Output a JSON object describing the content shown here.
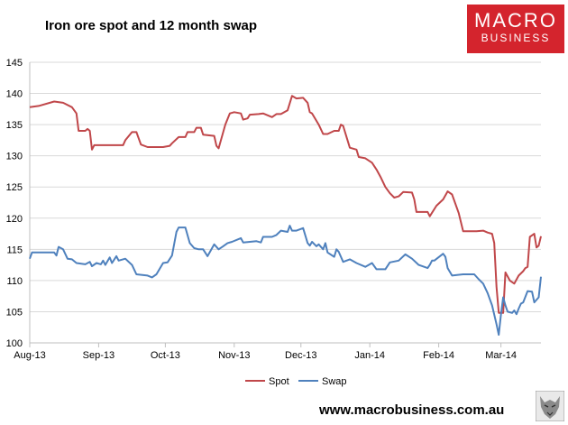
{
  "header": {
    "title": "Iron ore spot and 12 month swap",
    "logo_top": "MACRO",
    "logo_bottom": "BUSINESS"
  },
  "footer": {
    "website": "www.macrobusiness.com.au"
  },
  "colors": {
    "spot": "#c0474a",
    "swap": "#4f81bd",
    "logo": "#d4242d"
  },
  "icons": [
    "wolf-logo-icon"
  ],
  "chart_data": {
    "type": "line",
    "title": "Iron ore spot and 12 month swap",
    "xlabel": "",
    "ylabel": "",
    "x_tick_labels": [
      "Aug-13",
      "Sep-13",
      "Oct-13",
      "Nov-13",
      "Dec-13",
      "Jan-14",
      "Feb-14",
      "Mar-14"
    ],
    "x_range": [
      "2013-08-01",
      "2014-03-19"
    ],
    "ylim": [
      100,
      145
    ],
    "y_ticks": [
      100,
      105,
      110,
      115,
      120,
      125,
      130,
      135,
      140,
      145
    ],
    "grid": "horizontal",
    "legend": "bottom-center",
    "series": [
      {
        "name": "Spot",
        "points": [
          [
            "2013-08-01",
            137.8
          ],
          [
            "2013-08-05",
            138.0
          ],
          [
            "2013-08-12",
            138.7
          ],
          [
            "2013-08-16",
            138.5
          ],
          [
            "2013-08-20",
            137.8
          ],
          [
            "2013-08-22",
            136.8
          ],
          [
            "2013-08-23",
            134.0
          ],
          [
            "2013-08-26",
            134.0
          ],
          [
            "2013-08-27",
            134.3
          ],
          [
            "2013-08-28",
            134.0
          ],
          [
            "2013-08-29",
            131.0
          ],
          [
            "2013-08-30",
            131.7
          ],
          [
            "2013-09-06",
            131.7
          ],
          [
            "2013-09-12",
            131.7
          ],
          [
            "2013-09-13",
            132.5
          ],
          [
            "2013-09-16",
            133.8
          ],
          [
            "2013-09-18",
            133.8
          ],
          [
            "2013-09-20",
            131.8
          ],
          [
            "2013-09-23",
            131.4
          ],
          [
            "2013-09-30",
            131.4
          ],
          [
            "2013-10-03",
            131.6
          ],
          [
            "2013-10-04",
            132.0
          ],
          [
            "2013-10-07",
            133.0
          ],
          [
            "2013-10-10",
            133.0
          ],
          [
            "2013-10-11",
            133.8
          ],
          [
            "2013-10-14",
            133.8
          ],
          [
            "2013-10-15",
            134.5
          ],
          [
            "2013-10-17",
            134.5
          ],
          [
            "2013-10-18",
            133.4
          ],
          [
            "2013-10-23",
            133.2
          ],
          [
            "2013-10-24",
            131.6
          ],
          [
            "2013-10-25",
            131.2
          ],
          [
            "2013-10-28",
            135.0
          ],
          [
            "2013-10-30",
            136.8
          ],
          [
            "2013-11-01",
            137.0
          ],
          [
            "2013-11-04",
            136.8
          ],
          [
            "2013-11-05",
            135.8
          ],
          [
            "2013-11-07",
            136.0
          ],
          [
            "2013-11-08",
            136.6
          ],
          [
            "2013-11-12",
            136.7
          ],
          [
            "2013-11-14",
            136.8
          ],
          [
            "2013-11-18",
            136.2
          ],
          [
            "2013-11-20",
            136.7
          ],
          [
            "2013-11-22",
            136.7
          ],
          [
            "2013-11-25",
            137.3
          ],
          [
            "2013-11-27",
            139.6
          ],
          [
            "2013-11-29",
            139.2
          ],
          [
            "2013-12-02",
            139.3
          ],
          [
            "2013-12-04",
            138.5
          ],
          [
            "2013-12-05",
            137.0
          ],
          [
            "2013-12-06",
            136.8
          ],
          [
            "2013-12-09",
            135.0
          ],
          [
            "2013-12-11",
            133.5
          ],
          [
            "2013-12-13",
            133.5
          ],
          [
            "2013-12-16",
            134.0
          ],
          [
            "2013-12-18",
            134.0
          ],
          [
            "2013-12-19",
            135.0
          ],
          [
            "2013-12-20",
            134.8
          ],
          [
            "2013-12-23",
            131.3
          ],
          [
            "2013-12-26",
            131.0
          ],
          [
            "2013-12-27",
            129.8
          ],
          [
            "2013-12-30",
            129.6
          ],
          [
            "2014-01-02",
            128.9
          ],
          [
            "2014-01-04",
            127.8
          ],
          [
            "2014-01-06",
            126.5
          ],
          [
            "2014-01-08",
            125.0
          ],
          [
            "2014-01-10",
            124.0
          ],
          [
            "2014-01-12",
            123.3
          ],
          [
            "2014-01-14",
            123.5
          ],
          [
            "2014-01-16",
            124.2
          ],
          [
            "2014-01-20",
            124.1
          ],
          [
            "2014-01-21",
            123.0
          ],
          [
            "2014-01-22",
            121.0
          ],
          [
            "2014-01-27",
            121.0
          ],
          [
            "2014-01-28",
            120.3
          ],
          [
            "2014-01-31",
            122.0
          ],
          [
            "2014-02-03",
            123.0
          ],
          [
            "2014-02-05",
            124.3
          ],
          [
            "2014-02-07",
            123.8
          ],
          [
            "2014-02-10",
            120.8
          ],
          [
            "2014-02-12",
            117.9
          ],
          [
            "2014-02-18",
            117.9
          ],
          [
            "2014-02-21",
            118.0
          ],
          [
            "2014-02-23",
            117.7
          ],
          [
            "2014-02-25",
            117.5
          ],
          [
            "2014-02-26",
            116.0
          ],
          [
            "2014-02-27",
            109.0
          ],
          [
            "2014-02-28",
            104.8
          ],
          [
            "2014-03-02",
            104.8
          ],
          [
            "2014-03-03",
            111.3
          ],
          [
            "2014-03-05",
            110.0
          ],
          [
            "2014-03-07",
            109.5
          ],
          [
            "2014-03-09",
            110.8
          ],
          [
            "2014-03-11",
            111.5
          ],
          [
            "2014-03-12",
            112.0
          ],
          [
            "2014-03-13",
            112.2
          ],
          [
            "2014-03-14",
            117.0
          ],
          [
            "2014-03-16",
            117.5
          ],
          [
            "2014-03-17",
            115.3
          ],
          [
            "2014-03-18",
            115.6
          ],
          [
            "2014-03-19",
            117.1
          ]
        ]
      },
      {
        "name": "Swap",
        "points": [
          [
            "2013-08-01",
            113.5
          ],
          [
            "2013-08-02",
            114.5
          ],
          [
            "2013-08-12",
            114.5
          ],
          [
            "2013-08-13",
            114.0
          ],
          [
            "2013-08-14",
            115.4
          ],
          [
            "2013-08-16",
            115.0
          ],
          [
            "2013-08-18",
            113.5
          ],
          [
            "2013-08-20",
            113.4
          ],
          [
            "2013-08-22",
            112.8
          ],
          [
            "2013-08-26",
            112.6
          ],
          [
            "2013-08-28",
            113.0
          ],
          [
            "2013-08-29",
            112.3
          ],
          [
            "2013-08-31",
            112.8
          ],
          [
            "2013-09-02",
            112.6
          ],
          [
            "2013-09-03",
            113.2
          ],
          [
            "2013-09-04",
            112.5
          ],
          [
            "2013-09-06",
            113.7
          ],
          [
            "2013-09-07",
            112.8
          ],
          [
            "2013-09-09",
            113.9
          ],
          [
            "2013-09-10",
            113.2
          ],
          [
            "2013-09-13",
            113.5
          ],
          [
            "2013-09-16",
            112.5
          ],
          [
            "2013-09-18",
            111.0
          ],
          [
            "2013-09-23",
            110.8
          ],
          [
            "2013-09-25",
            110.5
          ],
          [
            "2013-09-27",
            111.0
          ],
          [
            "2013-09-30",
            112.8
          ],
          [
            "2013-10-02",
            112.9
          ],
          [
            "2013-10-04",
            114.0
          ],
          [
            "2013-10-06",
            117.8
          ],
          [
            "2013-10-07",
            118.5
          ],
          [
            "2013-10-10",
            118.5
          ],
          [
            "2013-10-12",
            116.0
          ],
          [
            "2013-10-14",
            115.2
          ],
          [
            "2013-10-16",
            115.0
          ],
          [
            "2013-10-18",
            115.0
          ],
          [
            "2013-10-20",
            113.9
          ],
          [
            "2013-10-23",
            115.8
          ],
          [
            "2013-10-25",
            115.0
          ],
          [
            "2013-10-27",
            115.5
          ],
          [
            "2013-10-29",
            116.0
          ],
          [
            "2013-10-31",
            116.2
          ],
          [
            "2013-11-04",
            116.8
          ],
          [
            "2013-11-05",
            116.1
          ],
          [
            "2013-11-08",
            116.2
          ],
          [
            "2013-11-11",
            116.3
          ],
          [
            "2013-11-13",
            116.1
          ],
          [
            "2013-11-14",
            117.0
          ],
          [
            "2013-11-18",
            117.0
          ],
          [
            "2013-11-20",
            117.3
          ],
          [
            "2013-11-22",
            118.0
          ],
          [
            "2013-11-25",
            117.8
          ],
          [
            "2013-11-26",
            118.8
          ],
          [
            "2013-11-27",
            118.0
          ],
          [
            "2013-11-29",
            118.0
          ],
          [
            "2013-12-02",
            118.4
          ],
          [
            "2013-12-04",
            116.0
          ],
          [
            "2013-12-05",
            115.6
          ],
          [
            "2013-12-06",
            116.2
          ],
          [
            "2013-12-08",
            115.5
          ],
          [
            "2013-12-09",
            115.8
          ],
          [
            "2013-12-11",
            115.0
          ],
          [
            "2013-12-12",
            116.0
          ],
          [
            "2013-12-13",
            114.5
          ],
          [
            "2013-12-16",
            113.8
          ],
          [
            "2013-12-17",
            115.0
          ],
          [
            "2013-12-18",
            114.6
          ],
          [
            "2013-12-20",
            113.0
          ],
          [
            "2013-12-23",
            113.4
          ],
          [
            "2013-12-26",
            112.8
          ],
          [
            "2013-12-30",
            112.2
          ],
          [
            "2014-01-02",
            112.8
          ],
          [
            "2014-01-04",
            111.8
          ],
          [
            "2014-01-08",
            111.8
          ],
          [
            "2014-01-10",
            112.9
          ],
          [
            "2014-01-14",
            113.2
          ],
          [
            "2014-01-17",
            114.2
          ],
          [
            "2014-01-20",
            113.5
          ],
          [
            "2014-01-23",
            112.5
          ],
          [
            "2014-01-27",
            112.0
          ],
          [
            "2014-01-28",
            112.5
          ],
          [
            "2014-01-29",
            113.2
          ],
          [
            "2014-01-30",
            113.2
          ],
          [
            "2014-02-03",
            114.3
          ],
          [
            "2014-02-04",
            113.8
          ],
          [
            "2014-02-05",
            112.0
          ],
          [
            "2014-02-07",
            110.8
          ],
          [
            "2014-02-12",
            111.0
          ],
          [
            "2014-02-17",
            111.0
          ],
          [
            "2014-02-19",
            110.2
          ],
          [
            "2014-02-21",
            109.5
          ],
          [
            "2014-02-23",
            108.0
          ],
          [
            "2014-02-25",
            106.0
          ],
          [
            "2014-02-27",
            103.0
          ],
          [
            "2014-02-28",
            101.3
          ],
          [
            "2014-03-01",
            104.5
          ],
          [
            "2014-03-02",
            107.3
          ],
          [
            "2014-03-03",
            106.0
          ],
          [
            "2014-03-04",
            105.0
          ],
          [
            "2014-03-06",
            104.8
          ],
          [
            "2014-03-07",
            105.2
          ],
          [
            "2014-03-08",
            104.6
          ],
          [
            "2014-03-09",
            105.5
          ],
          [
            "2014-03-10",
            106.3
          ],
          [
            "2014-03-11",
            106.5
          ],
          [
            "2014-03-13",
            108.3
          ],
          [
            "2014-03-15",
            108.2
          ],
          [
            "2014-03-16",
            106.5
          ],
          [
            "2014-03-18",
            107.3
          ],
          [
            "2014-03-19",
            110.6
          ]
        ]
      }
    ]
  }
}
